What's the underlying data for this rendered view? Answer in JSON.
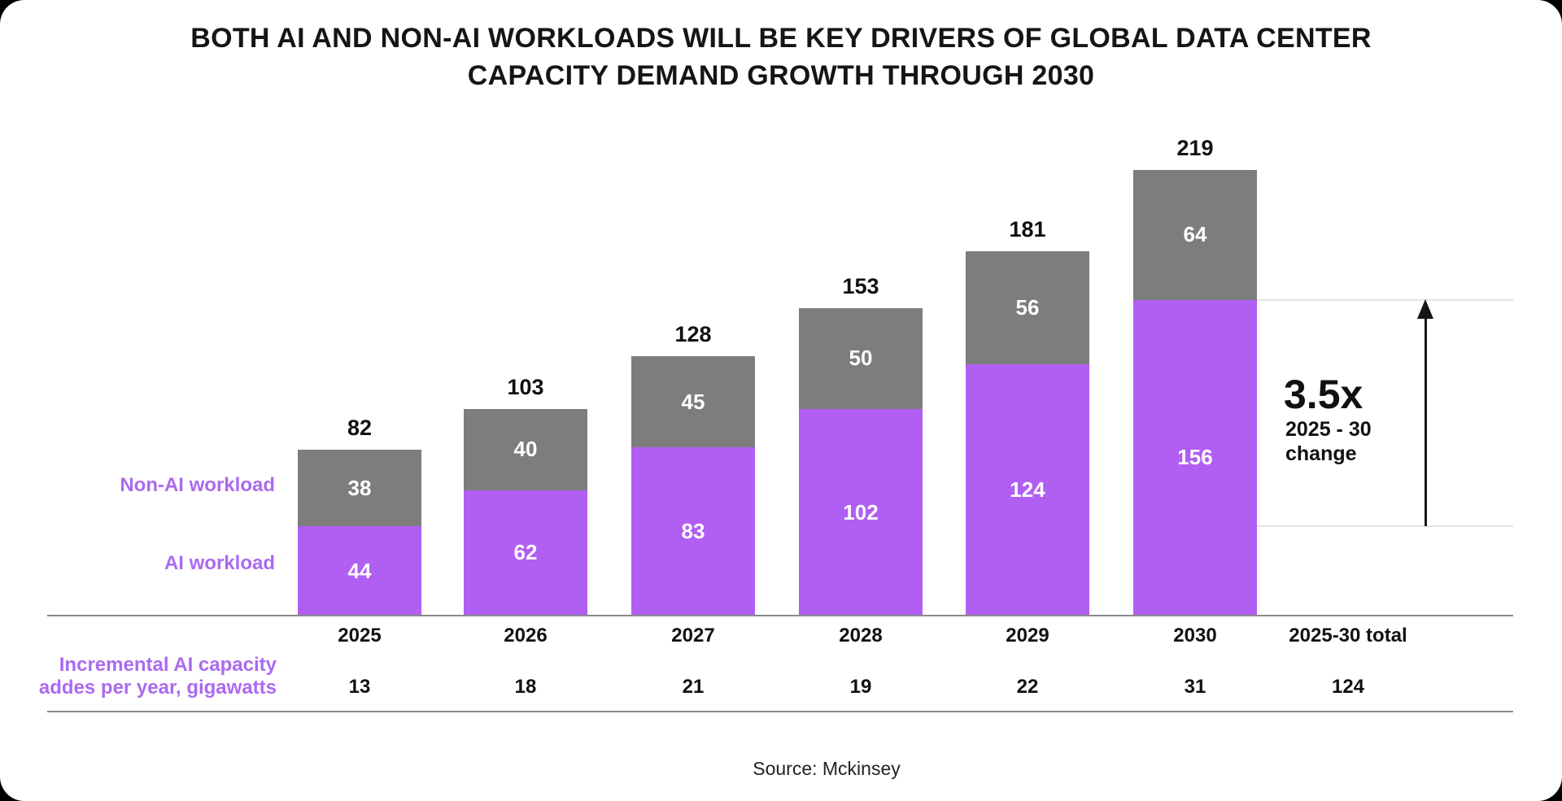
{
  "title": {
    "line1": "BOTH AI AND NON-AI WORKLOADS WILL BE KEY DRIVERS OF GLOBAL DATA CENTER",
    "line2": "CAPACITY DEMAND GROWTH THROUGH 2030"
  },
  "colors": {
    "ai_bar": "#b15ef3",
    "non_ai_bar": "#7d7d7d",
    "purple_text": "#ab6af0",
    "axis_rule": "#8a8a8a",
    "gridline": "#e3e3e3",
    "background": "#000000",
    "card": "#ffffff"
  },
  "legend": {
    "non_ai_label": "Non-AI workload",
    "ai_label": "AI workload"
  },
  "chart_data": {
    "type": "bar",
    "stacked": true,
    "categories": [
      "2025",
      "2026",
      "2027",
      "2028",
      "2029",
      "2030"
    ],
    "series": [
      {
        "name": "AI workload",
        "color": "#b15ef3",
        "values": [
          44,
          62,
          83,
          102,
          124,
          156
        ]
      },
      {
        "name": "Non-AI workload",
        "color": "#7d7d7d",
        "values": [
          38,
          40,
          45,
          50,
          56,
          64
        ]
      }
    ],
    "totals": [
      82,
      103,
      128,
      153,
      181,
      219
    ],
    "total_column_label": "2025-30 total",
    "incremental_row": {
      "label_line1": "Incremental AI capacity",
      "label_line2": "addes per year, gigawatts",
      "values": [
        13,
        18,
        21,
        19,
        22,
        31
      ],
      "total": 124
    },
    "annotation": {
      "multiplier": "3.5x",
      "range": "2025 - 30",
      "caption": "change"
    },
    "ylim": [
      0,
      230
    ],
    "grid": false,
    "legend_position": "left"
  },
  "source": {
    "text": "Source: Mckinsey"
  }
}
